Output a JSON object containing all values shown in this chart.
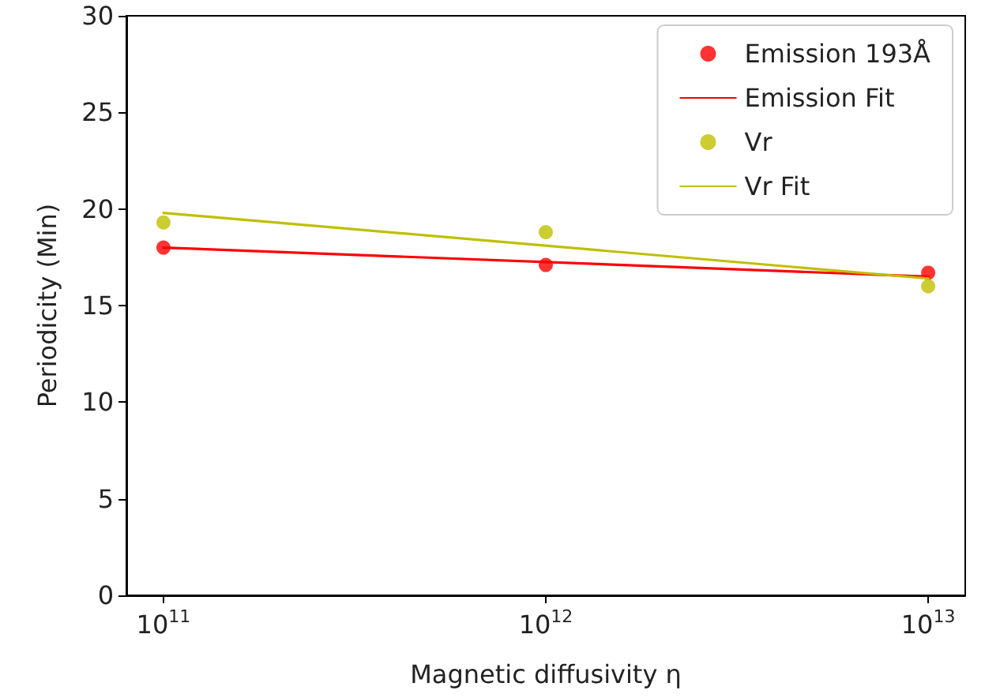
{
  "chart_data": {
    "type": "scatter",
    "xlabel": "Magnetic diffusivity η",
    "ylabel": "Periodicity (Min)",
    "log": "x",
    "xlim": [
      80000000000,
      12500000000000
    ],
    "xticks": [
      {
        "value": 100000000000,
        "label": "10$^{11}$"
      },
      {
        "value": 1000000000000,
        "label": "10$^{12}$"
      },
      {
        "value": 10000000000000,
        "label": "10$^{13}$"
      }
    ],
    "ylim": [
      0,
      30
    ],
    "yticks": [
      0,
      5,
      10,
      15,
      20,
      25,
      30
    ],
    "grid": false,
    "legend": "top right",
    "series": [
      {
        "name": "Emission 193Å",
        "marker": "circle",
        "color": "#ff0000",
        "x": [
          100000000000,
          1000000000000,
          10000000000000
        ],
        "values": [
          18.0,
          17.1,
          16.7
        ]
      },
      {
        "name": "Emission Fit",
        "type": "line",
        "line_style": "solid",
        "color": "#ff0000",
        "x": [
          100000000000,
          10000000000000
        ],
        "values": [
          18.0,
          16.5
        ]
      },
      {
        "name": "Vr",
        "marker": "circle",
        "color": "#bfbf00",
        "x": [
          100000000000,
          1000000000000,
          10000000000000
        ],
        "values": [
          19.3,
          18.8,
          16.0
        ]
      },
      {
        "name": "Vr Fit",
        "type": "line",
        "line_style": "solid",
        "color": "#bfbf00",
        "x": [
          100000000000,
          10000000000000
        ],
        "values": [
          19.8,
          16.4
        ]
      }
    ]
  }
}
